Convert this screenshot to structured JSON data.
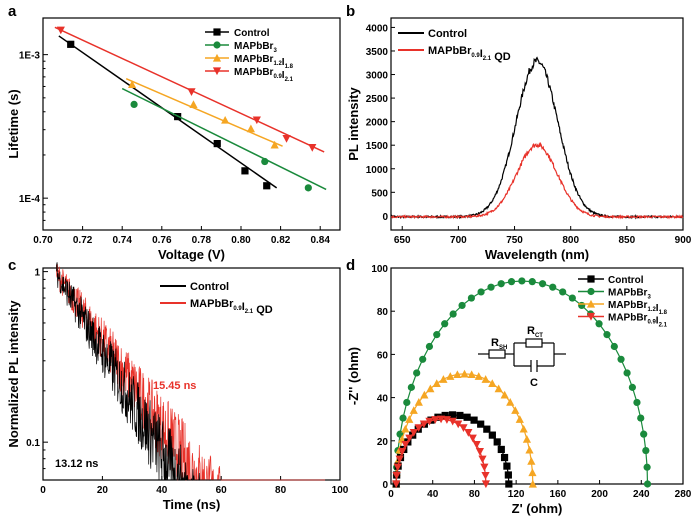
{
  "chart_data": [
    {
      "id": "a",
      "panel_label": "a",
      "type": "scatter",
      "xlabel": "Voltage (V)",
      "ylabel": "Lifetime (s)",
      "xlim": [
        0.7,
        0.85
      ],
      "ylim_log": [
        6e-05,
        0.0018
      ],
      "xticks": [
        "0.70",
        "0.72",
        "0.74",
        "0.76",
        "0.78",
        "0.80",
        "0.82",
        "0.84"
      ],
      "yticks": [
        {
          "label": "1E-3",
          "value": 0.001
        },
        {
          "label": "1E-4",
          "value": 0.0001
        }
      ],
      "series": [
        {
          "name": "Control",
          "color": "#000000",
          "marker": "square",
          "points": [
            [
              0.714,
              0.00118
            ],
            [
              0.768,
              0.00037
            ],
            [
              0.788,
              0.00024
            ],
            [
              0.802,
              0.000155
            ],
            [
              0.813,
              0.000122
            ]
          ],
          "fit": [
            [
              0.708,
              0.00135
            ],
            [
              0.818,
              0.000118
            ]
          ]
        },
        {
          "name": "MAPbBr",
          "sub": "3",
          "color": "#1a8a3c",
          "marker": "circle",
          "points": [
            [
              0.746,
              0.00045
            ],
            [
              0.812,
              0.00018
            ],
            [
              0.834,
              0.000118
            ]
          ],
          "fit": [
            [
              0.74,
              0.00058
            ],
            [
              0.843,
              0.000115
            ]
          ]
        },
        {
          "name": "MAPbBr",
          "sub": "1.2",
          "name2": "I",
          "sub2": "1.8",
          "color": "#f5a623",
          "marker": "triangle-up",
          "points": [
            [
              0.745,
              0.00062
            ],
            [
              0.776,
              0.00045
            ],
            [
              0.792,
              0.00035
            ],
            [
              0.805,
              0.000305
            ],
            [
              0.817,
              0.000235
            ]
          ],
          "fit": [
            [
              0.742,
              0.00068
            ],
            [
              0.821,
              0.00023
            ]
          ]
        },
        {
          "name": "MAPbBr",
          "sub": "0.9",
          "name2": "I",
          "sub2": "2.1",
          "color": "#e8322a",
          "marker": "triangle-down",
          "points": [
            [
              0.709,
              0.00148
            ],
            [
              0.775,
              0.00055
            ],
            [
              0.808,
              0.00035
            ],
            [
              0.823,
              0.00026
            ],
            [
              0.836,
              0.000225
            ]
          ],
          "fit": [
            [
              0.706,
              0.00155
            ],
            [
              0.842,
              0.00021
            ]
          ]
        }
      ]
    },
    {
      "id": "b",
      "panel_label": "b",
      "type": "line",
      "xlabel": "Wavelength (nm)",
      "ylabel": "PL intensity",
      "xlim": [
        640,
        900
      ],
      "ylim": [
        -300,
        4200
      ],
      "xticks": [
        "650",
        "700",
        "750",
        "800",
        "850",
        "900"
      ],
      "yticks": [
        "0",
        "500",
        "1000",
        "1500",
        "2000",
        "2500",
        "3000",
        "3500",
        "4000"
      ],
      "series": [
        {
          "name": "Control",
          "color": "#000000",
          "peak_nm": 770,
          "peak_value": 3300,
          "fwhm_nm": 44
        },
        {
          "name": "MAPbBr",
          "sub": "0.9",
          "name2": "I",
          "sub2": "2.1",
          "suffix": " QD",
          "color": "#e8322a",
          "peak_nm": 770,
          "peak_value": 1530,
          "fwhm_nm": 42
        }
      ]
    },
    {
      "id": "c",
      "panel_label": "c",
      "type": "line",
      "xlabel": "Time (ns)",
      "ylabel": "Normalized PL intensity",
      "xlim": [
        0,
        100
      ],
      "ylim_log": [
        0.06,
        1.05
      ],
      "xticks": [
        "0",
        "20",
        "40",
        "60",
        "80",
        "100"
      ],
      "yticks": [
        {
          "label": "1",
          "value": 1
        },
        {
          "label": "0.1",
          "value": 0.1
        }
      ],
      "series": [
        {
          "name": "Control",
          "color": "#000000",
          "lifetime": "13.12 ns",
          "tau_ns": 13.12
        },
        {
          "name": "MAPbBr",
          "sub": "0.9",
          "name2": "I",
          "sub2": "2.1",
          "suffix": " QD",
          "color": "#e8322a",
          "lifetime": "15.45 ns",
          "tau_ns": 15.45
        }
      ],
      "annotations": {
        "red_text": "15.45 ns",
        "black_text": "13.12 ns"
      }
    },
    {
      "id": "d",
      "panel_label": "d",
      "type": "scatter",
      "xlabel": "Z' (ohm)",
      "ylabel": "-Z'' (ohm)",
      "xlim": [
        0,
        280
      ],
      "ylim": [
        0,
        100
      ],
      "xticks": [
        "0",
        "40",
        "80",
        "120",
        "160",
        "200",
        "240",
        "280"
      ],
      "yticks": [
        "0",
        "20",
        "40",
        "60",
        "80",
        "100"
      ],
      "series": [
        {
          "name": "Control",
          "color": "#000000",
          "marker": "square",
          "arc_start": 5,
          "arc_end": 113,
          "arc_height": 32
        },
        {
          "name": "MAPbBr",
          "sub": "3",
          "color": "#1a8a3c",
          "marker": "circle",
          "arc_start": 5,
          "arc_end": 246,
          "arc_height": 94
        },
        {
          "name": "MAPbBr",
          "sub": "1.2",
          "name2": "I",
          "sub2": "1.8",
          "color": "#f5a623",
          "marker": "triangle-up",
          "arc_start": 5,
          "arc_end": 136,
          "arc_height": 51
        },
        {
          "name": "MAPbBr",
          "sub": "0.9",
          "name2": "I",
          "sub2": "2.1",
          "color": "#e8322a",
          "marker": "triangle-down",
          "arc_start": 5,
          "arc_end": 91,
          "arc_height": 30
        }
      ],
      "circuit": {
        "r1": "R",
        "r1_sub": "SH",
        "r2": "R",
        "r2_sub": "CT",
        "c": "C"
      }
    }
  ]
}
